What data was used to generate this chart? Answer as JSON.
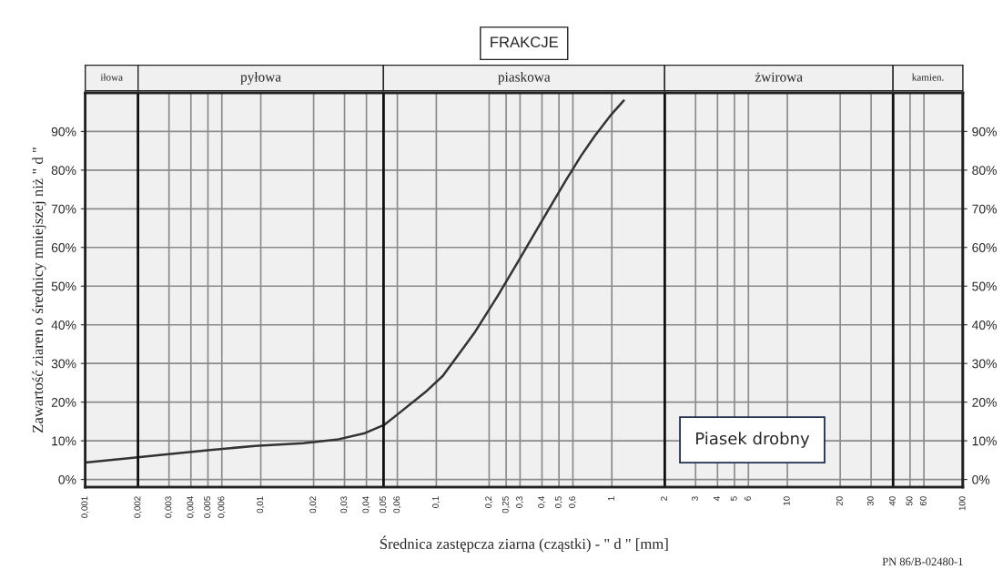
{
  "chart_data": {
    "type": "line",
    "title": "FRAKCJE",
    "xlabel": "Średnica zastępcza ziarna (cząstki) - \" d \" [mm]",
    "ylabel": "Zawartość ziaren o średnicy mniejszej niż \" d \"",
    "log": "x",
    "grid": true,
    "legend": false,
    "marker": "none",
    "line_style": "solid",
    "xlim": [
      0.001,
      100
    ],
    "ylim": [
      -2,
      100
    ],
    "y2lim": [
      -2,
      100
    ],
    "xticks": [
      {
        "value": 0.001,
        "label": "0,001"
      },
      {
        "value": 0.002,
        "label": "0,002"
      },
      {
        "value": 0.003,
        "label": "0,003"
      },
      {
        "value": 0.004,
        "label": "0,004"
      },
      {
        "value": 0.005,
        "label": "0,005"
      },
      {
        "value": 0.006,
        "label": "0,006"
      },
      {
        "value": 0.01,
        "label": "0,01"
      },
      {
        "value": 0.02,
        "label": "0,02"
      },
      {
        "value": 0.03,
        "label": "0,03"
      },
      {
        "value": 0.04,
        "label": "0,04"
      },
      {
        "value": 0.05,
        "label": "0,05"
      },
      {
        "value": 0.06,
        "label": "0,06"
      },
      {
        "value": 0.1,
        "label": "0,1"
      },
      {
        "value": 0.2,
        "label": "0,2"
      },
      {
        "value": 0.25,
        "label": "0,25"
      },
      {
        "value": 0.3,
        "label": "0,3"
      },
      {
        "value": 0.4,
        "label": "0,4"
      },
      {
        "value": 0.5,
        "label": "0,5"
      },
      {
        "value": 0.6,
        "label": "0,6"
      },
      1,
      2,
      3,
      4,
      5,
      6,
      10,
      20,
      30,
      40,
      50,
      60,
      100
    ],
    "yticks": [
      {
        "value": 0,
        "label": "0%"
      },
      {
        "value": 10,
        "label": "10%"
      },
      {
        "value": 20,
        "label": "20%"
      },
      {
        "value": 30,
        "label": "30%"
      },
      {
        "value": 40,
        "label": "40%"
      },
      {
        "value": 50,
        "label": "50%"
      },
      {
        "value": 60,
        "label": "60%"
      },
      {
        "value": 70,
        "label": "70%"
      },
      {
        "value": 80,
        "label": "80%"
      },
      {
        "value": 90,
        "label": "90%"
      }
    ],
    "y2ticks": [
      {
        "value": 0,
        "label": "0%"
      },
      {
        "value": 10,
        "label": "10%"
      },
      {
        "value": 20,
        "label": "20%"
      },
      {
        "value": 30,
        "label": "30%"
      },
      {
        "value": 40,
        "label": "40%"
      },
      {
        "value": 50,
        "label": "50%"
      },
      {
        "value": 60,
        "label": "60%"
      },
      {
        "value": 70,
        "label": "70%"
      },
      {
        "value": 80,
        "label": "80%"
      },
      {
        "value": 90,
        "label": "90%"
      }
    ],
    "series": [
      {
        "color": "#333333",
        "x": [
          0.001,
          0.00177,
          0.00274,
          0.00514,
          0.0093,
          0.0175,
          0.0271,
          0.0387,
          0.0508,
          0.0608,
          0.0887,
          0.109,
          0.167,
          0.224,
          0.298,
          0.406,
          0.546,
          0.668,
          0.798,
          0.977,
          1.17
        ],
        "values": [
          4.4,
          5.5,
          6.4,
          7.6,
          8.7,
          9.4,
          10.3,
          11.9,
          14.2,
          17.0,
          23.0,
          26.8,
          38.3,
          47.5,
          57.0,
          67.4,
          77.3,
          83.7,
          88.8,
          94.0,
          98.0
        ]
      }
    ],
    "bands": [
      {
        "axis": "x",
        "from": 0.001,
        "to": 0.002,
        "label": "iłowa",
        "color": "#f0f0f0"
      },
      {
        "axis": "x",
        "from": 0.002,
        "to": 0.05,
        "label": "pyłowa",
        "color": "#f0f0f0"
      },
      {
        "axis": "x",
        "from": 0.05,
        "to": 2,
        "label": "piaskowa",
        "color": "#f0f0f0"
      },
      {
        "axis": "x",
        "from": 2,
        "to": 40,
        "label": "żwirowa",
        "color": "#f0f0f0"
      },
      {
        "axis": "x",
        "from": 40,
        "to": 100,
        "label": "kamien.",
        "color": "#f0f0f0"
      }
    ],
    "annotations": [
      "Piasek drobny",
      "PN 86/B-02480-1"
    ]
  }
}
